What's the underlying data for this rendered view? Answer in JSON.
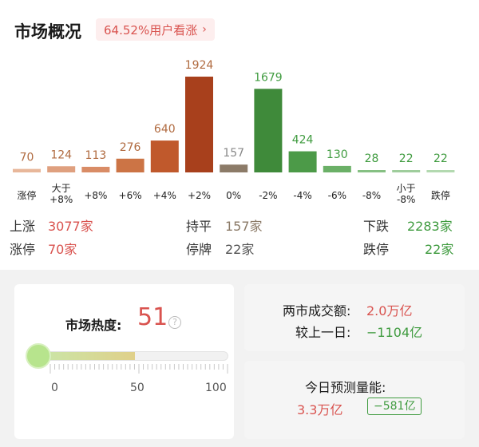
{
  "header": {
    "title": "市场概况",
    "pill_text": "64.52%用户看涨",
    "pill_chevron": "›"
  },
  "chart_data": {
    "type": "bar",
    "categories": [
      "涨停",
      "大于+8%",
      "+8%",
      "+6%",
      "+4%",
      "+2%",
      "0%",
      "-2%",
      "-4%",
      "-6%",
      "-8%",
      "小于-8%",
      "跌停"
    ],
    "values": [
      70,
      124,
      113,
      276,
      640,
      1924,
      157,
      1679,
      424,
      130,
      28,
      22,
      22
    ],
    "value_labels": [
      "70",
      "124",
      "113",
      "276",
      "640",
      "1924",
      "157",
      "1679",
      "424",
      "130",
      "28",
      "22",
      "22"
    ],
    "category_lines": [
      [
        "涨停"
      ],
      [
        "大于",
        "+8%"
      ],
      [
        "+8%"
      ],
      [
        "+6%"
      ],
      [
        "+4%"
      ],
      [
        "+2%"
      ],
      [
        "0%"
      ],
      [
        "-2%"
      ],
      [
        "-4%"
      ],
      [
        "-6%"
      ],
      [
        "-8%"
      ],
      [
        "小于",
        "-8%"
      ],
      [
        "跌停"
      ]
    ],
    "colors": [
      "#e8b79a",
      "#dfa07f",
      "#d98c66",
      "#cc7445",
      "#c0592c",
      "#a8401c",
      "#8c7b68",
      "#3f8a3a",
      "#4c9a48",
      "#6bb067",
      "#86c083",
      "#9fcd9c",
      "#b3d9b0"
    ],
    "label_colors": [
      "#b06a3f",
      "#b06a3f",
      "#b06a3f",
      "#b06a3f",
      "#b06a3f",
      "#b06a3f",
      "#888888",
      "#3f9b3f",
      "#3f9b3f",
      "#3f9b3f",
      "#3f9b3f",
      "#3f9b3f",
      "#3f9b3f"
    ],
    "ylim": [
      0,
      1924
    ]
  },
  "stats": {
    "up_label": "上涨",
    "up_value": "3077家",
    "flat_label": "持平",
    "flat_value": "157家",
    "down_label": "下跌",
    "down_value": "2283家",
    "limit_up_label": "涨停",
    "limit_up_value": "70家",
    "suspended_label": "停牌",
    "suspended_value": "22家",
    "limit_down_label": "跌停",
    "limit_down_value": "22家"
  },
  "heat": {
    "title": "市场热度:",
    "value": "51",
    "help_icon": "?",
    "level_fraction": 0.51,
    "scale": [
      "0",
      "50",
      "100"
    ]
  },
  "turnover": {
    "label": "两市成交额:",
    "value": "2.0万亿",
    "compare_label": "较上一日:",
    "compare_value": "−1104亿"
  },
  "forecast": {
    "label": "今日预测量能:",
    "value": "3.3万亿",
    "delta": "−581亿"
  },
  "colors": {
    "up": "#d9534f",
    "down": "#3f9b3f"
  }
}
